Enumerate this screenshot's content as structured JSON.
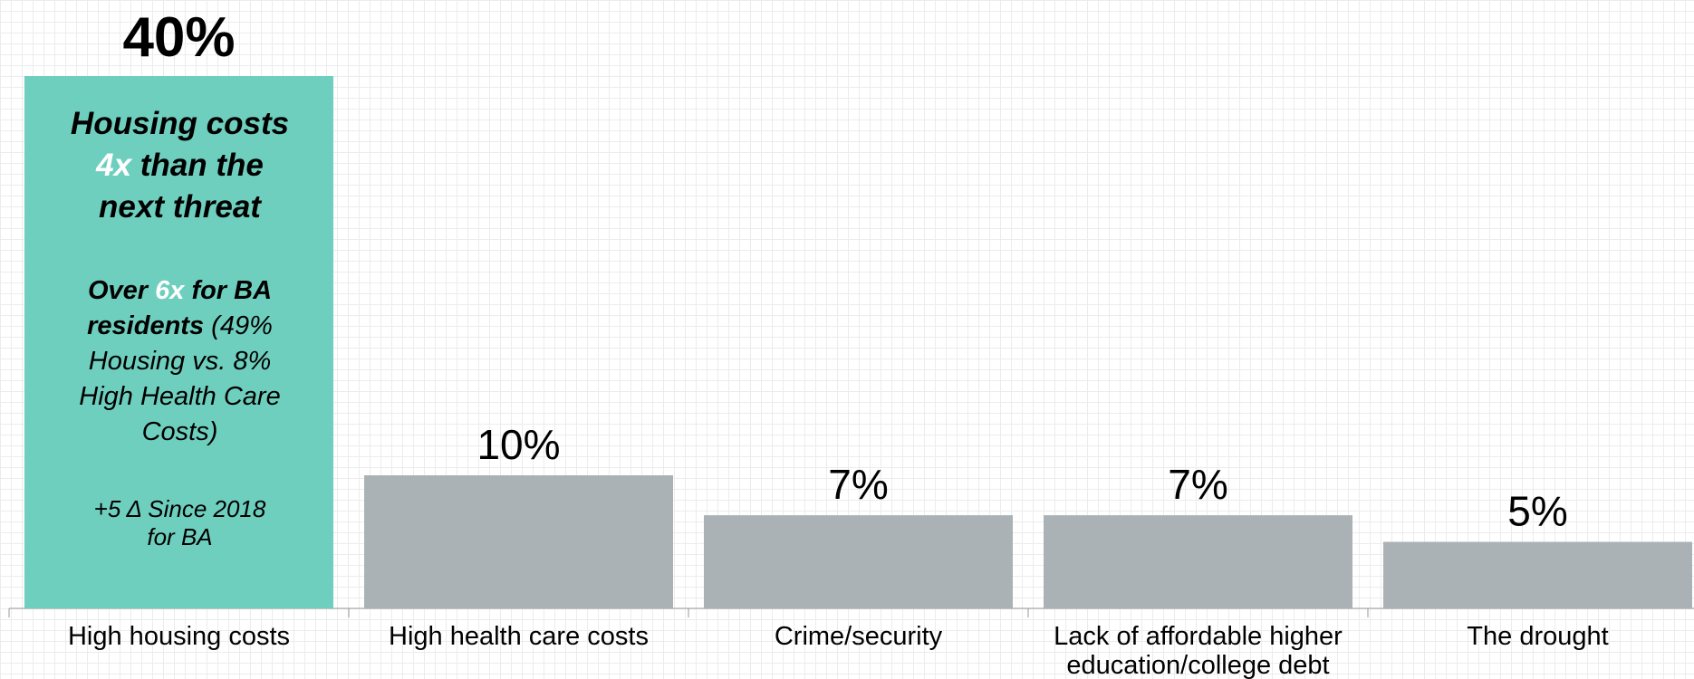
{
  "chart_data": {
    "type": "bar",
    "categories": [
      "High housing costs",
      "High health care costs",
      "Crime/security",
      "Lack of affordable higher education/college debt",
      "The drought"
    ],
    "category_label_lines": [
      [
        "High housing costs"
      ],
      [
        "High health care costs"
      ],
      [
        "Crime/security"
      ],
      [
        "Lack of affordable higher",
        "education/college debt"
      ],
      [
        "The drought"
      ]
    ],
    "values": [
      40,
      10,
      7,
      7,
      5
    ],
    "data_labels": [
      "40%",
      "10%",
      "7%",
      "7%",
      "5%"
    ],
    "value_unit": "%",
    "ylim": [
      0,
      40
    ],
    "grid": false,
    "title": "",
    "xlabel": "",
    "ylabel": "",
    "colors": {
      "highlight_bar": "#6fcfbe",
      "default_bar": "#abb2b6",
      "axis": "#999999",
      "highlight_text": "#ffffff"
    },
    "annotation": {
      "headline": {
        "pre": "Housing costs",
        "mult": "4x",
        "post1": "than the",
        "post2": "next threat"
      },
      "sub": {
        "pre": "Over",
        "mult": "6x",
        "post": "for BA",
        "line2": "residents",
        "detail1": "(49%",
        "detail2": "Housing vs. 8%",
        "detail3": "High Health Care",
        "detail4": "Costs)"
      },
      "delta": {
        "line1": "+5 Δ Since 2018",
        "line2": "for BA"
      }
    }
  }
}
